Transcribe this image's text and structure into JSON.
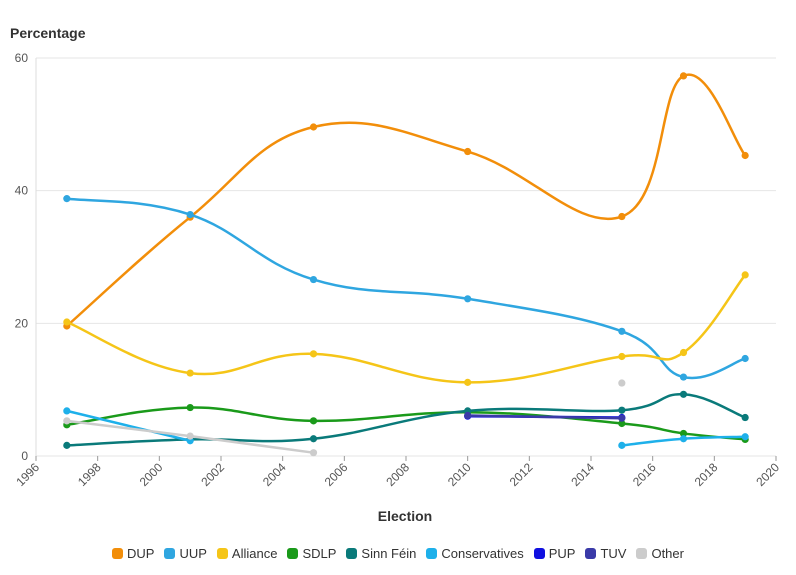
{
  "chart_data": {
    "type": "line",
    "ylabel": "Percentage",
    "xlabel": "Election",
    "xlim": [
      1996,
      2020
    ],
    "ylim": [
      0,
      60
    ],
    "x_ticks": [
      "1996",
      "1998",
      "2000",
      "2002",
      "2004",
      "2006",
      "2008",
      "2010",
      "2012",
      "2014",
      "2016",
      "2018",
      "2020"
    ],
    "y_ticks": [
      "0",
      "20",
      "40",
      "60"
    ],
    "grid": "horizontal",
    "legend_position": "bottom",
    "series": [
      {
        "name": "DUP",
        "color": "#f28e0a",
        "points": [
          [
            1997,
            19.6
          ],
          [
            2001,
            36.0
          ],
          [
            2005,
            49.6
          ],
          [
            2010,
            45.9
          ],
          [
            2015,
            36.1
          ],
          [
            2017,
            57.3
          ],
          [
            2019,
            45.3
          ]
        ]
      },
      {
        "name": "UUP",
        "color": "#2fa6e0",
        "points": [
          [
            1997,
            38.8
          ],
          [
            2001,
            36.4
          ],
          [
            2005,
            26.6
          ],
          [
            2010,
            23.7
          ],
          [
            2015,
            18.8
          ],
          [
            2017,
            11.9
          ],
          [
            2019,
            14.7
          ]
        ]
      },
      {
        "name": "Alliance",
        "color": "#f5c518",
        "points": [
          [
            1997,
            20.2
          ],
          [
            2001,
            12.5
          ],
          [
            2005,
            15.4
          ],
          [
            2010,
            11.1
          ],
          [
            2015,
            15.0
          ],
          [
            2017,
            15.6
          ],
          [
            2019,
            27.3
          ]
        ]
      },
      {
        "name": "SDLP",
        "color": "#1a9a1a",
        "points": [
          [
            1997,
            4.7
          ],
          [
            2001,
            7.3
          ],
          [
            2005,
            5.3
          ],
          [
            2010,
            6.6
          ],
          [
            2015,
            4.9
          ],
          [
            2017,
            3.4
          ],
          [
            2019,
            2.5
          ]
        ]
      },
      {
        "name": "Sinn Féin",
        "color": "#0a7a7a",
        "points": [
          [
            1997,
            1.6
          ],
          [
            2001,
            2.5
          ],
          [
            2005,
            2.6
          ],
          [
            2010,
            6.8
          ],
          [
            2015,
            6.9
          ],
          [
            2017,
            9.3
          ],
          [
            2019,
            5.8
          ]
        ]
      },
      {
        "name": "Conservatives",
        "color": "#1eb0ea",
        "points": [
          [
            1997,
            6.8
          ],
          [
            2001,
            2.3
          ]
        ],
        "points2": [
          [
            2015,
            1.6
          ],
          [
            2017,
            2.6
          ],
          [
            2019,
            2.9
          ]
        ]
      },
      {
        "name": "PUP",
        "color": "#1010e0",
        "points": [
          [
            2010,
            6.0
          ],
          [
            2015,
            5.8
          ]
        ]
      },
      {
        "name": "TUV",
        "color": "#3a3aa8",
        "points": [
          [
            2010,
            6.1
          ],
          [
            2015,
            5.7
          ]
        ]
      },
      {
        "name": "Other",
        "color": "#cccccc",
        "points": [
          [
            1997,
            5.3
          ],
          [
            2001,
            3.0
          ],
          [
            2005,
            0.5
          ]
        ],
        "points2": [
          [
            2015,
            11.0
          ]
        ]
      }
    ]
  }
}
